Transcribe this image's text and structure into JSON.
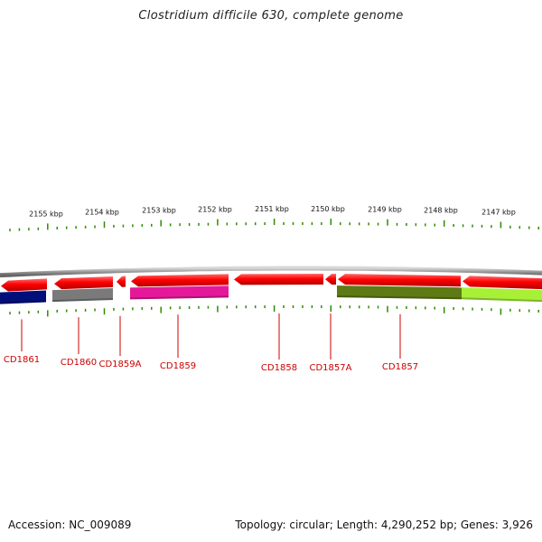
{
  "title": "Clostridium difficile 630, complete genome",
  "footer": {
    "accession": "Accession: NC_009089",
    "summary": "Topology: circular; Length: 4,290,252 bp; Genes: 3,926"
  },
  "colors": {
    "backbone": "#8a8a8a",
    "cds_arrow": "#ee0000",
    "tick": "#2e8b00",
    "label": "#cc0000"
  },
  "scale_labels": [
    {
      "label": "2155 kbp"
    },
    {
      "label": "2154 kbp"
    },
    {
      "label": "2153 kbp"
    },
    {
      "label": "2152 kbp"
    },
    {
      "label": "2151 kbp"
    },
    {
      "label": "2150 kbp"
    },
    {
      "label": "2149 kbp"
    },
    {
      "label": "2148 kbp"
    },
    {
      "label": "2147 kbp"
    }
  ],
  "genes": [
    {
      "name": "CD1861",
      "color": "#000f7a"
    },
    {
      "name": "CD1860",
      "color": "#7a7a7a"
    },
    {
      "name": "CD1859A",
      "color": "#ffffff"
    },
    {
      "name": "CD1859",
      "color": "#e6189a"
    },
    {
      "name": "CD1858",
      "color": "#ffffff"
    },
    {
      "name": "CD1857A",
      "color": "#ffffff"
    },
    {
      "name": "CD1857",
      "color": "#5e7a14"
    },
    {
      "name": "",
      "color": "#a8f038"
    }
  ]
}
